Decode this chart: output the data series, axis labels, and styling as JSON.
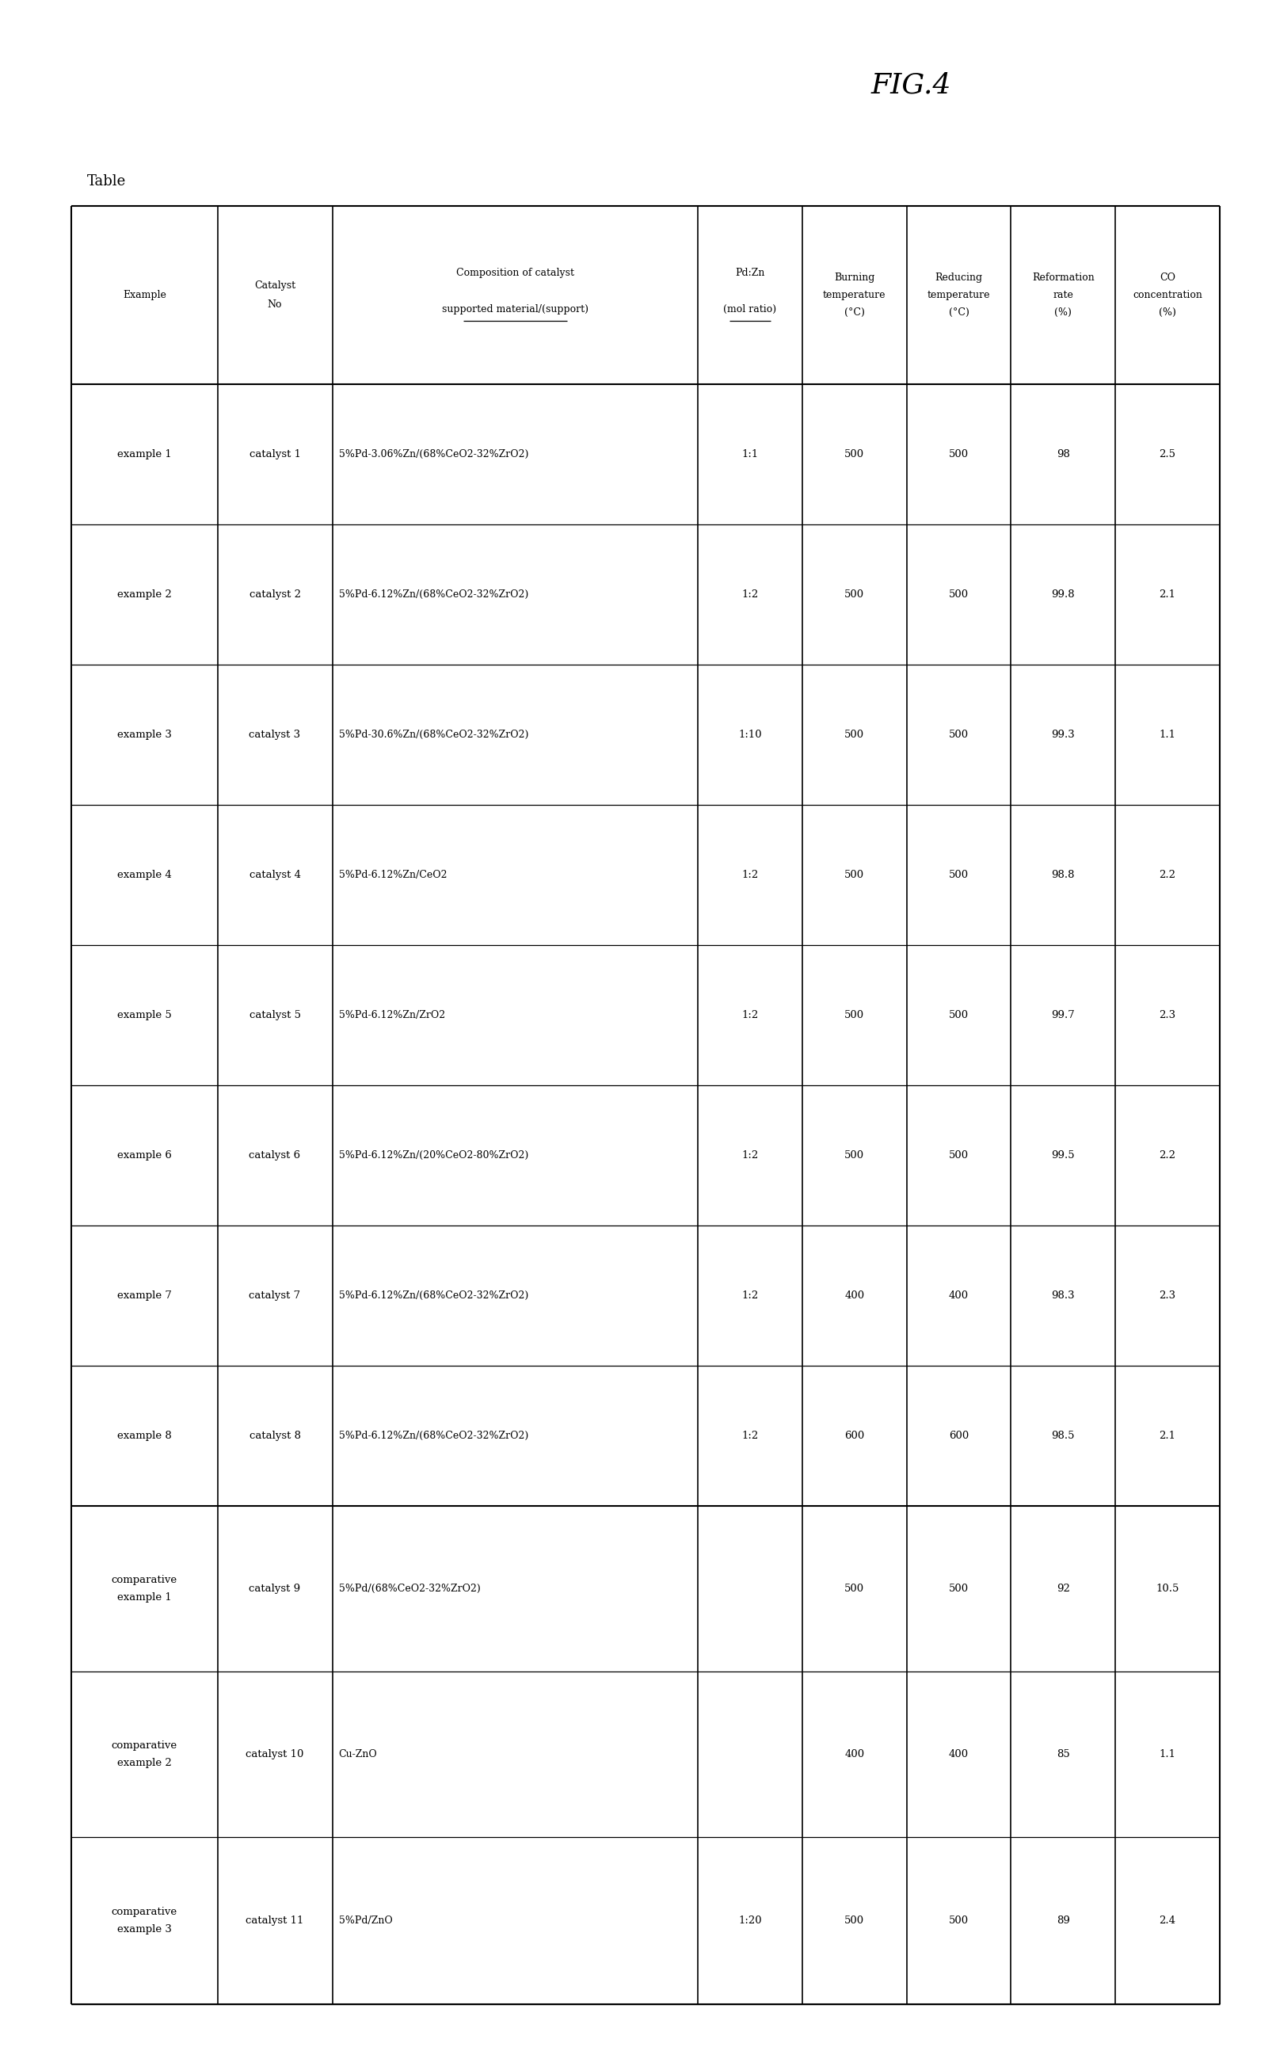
{
  "fig_title": "FIG.4",
  "table_title": "Table",
  "columns": [
    "Example",
    "Catalyst\nNo",
    "Composition of catalyst\nsupported material/(support)",
    "Pd:Zn\n(mol ratio)",
    "Burning\ntemperature\n(°C)",
    "Reducing\ntemperature\n(°C)",
    "Reformation\nrate\n(%)",
    "CO\nconcentration\n(%)"
  ],
  "col_underline": [
    false,
    false,
    true,
    true,
    false,
    false,
    false,
    false
  ],
  "rows": [
    [
      "example 1",
      "catalyst 1",
      "5%Pd-3.06%Zn/(68%CeO2-32%ZrO2)",
      "1:1",
      "500",
      "500",
      "98",
      "2.5"
    ],
    [
      "example 2",
      "catalyst 2",
      "5%Pd-6.12%Zn/(68%CeO2-32%ZrO2)",
      "1:2",
      "500",
      "500",
      "99.8",
      "2.1"
    ],
    [
      "example 3",
      "catalyst 3",
      "5%Pd-30.6%Zn/(68%CeO2-32%ZrO2)",
      "1:10",
      "500",
      "500",
      "99.3",
      "1.1"
    ],
    [
      "example 4",
      "catalyst 4",
      "5%Pd-6.12%Zn/CeO2",
      "1:2",
      "500",
      "500",
      "98.8",
      "2.2"
    ],
    [
      "example 5",
      "catalyst 5",
      "5%Pd-6.12%Zn/ZrO2",
      "1:2",
      "500",
      "500",
      "99.7",
      "2.3"
    ],
    [
      "example 6",
      "catalyst 6",
      "5%Pd-6.12%Zn/(20%CeO2-80%ZrO2)",
      "1:2",
      "500",
      "500",
      "99.5",
      "2.2"
    ],
    [
      "example 7",
      "catalyst 7",
      "5%Pd-6.12%Zn/(68%CeO2-32%ZrO2)",
      "1:2",
      "400",
      "400",
      "98.3",
      "2.3"
    ],
    [
      "example 8",
      "catalyst 8",
      "5%Pd-6.12%Zn/(68%CeO2-32%ZrO2)",
      "1:2",
      "600",
      "600",
      "98.5",
      "2.1"
    ],
    [
      "comparative\nexample 1",
      "catalyst 9",
      "5%Pd/(68%CeO2-32%ZrO2)",
      "",
      "500",
      "500",
      "92",
      "10.5"
    ],
    [
      "comparative\nexample 2",
      "catalyst 10",
      "Cu-ZnO",
      "",
      "400",
      "400",
      "85",
      "1.1"
    ],
    [
      "comparative\nexample 3",
      "catalyst 11",
      "5%Pd/ZnO",
      "1:20",
      "500",
      "500",
      "89",
      "2.4"
    ]
  ],
  "col_widths_rel": [
    1.4,
    1.1,
    3.5,
    1.0,
    1.0,
    1.0,
    1.0,
    1.0
  ],
  "background_color": "#ffffff",
  "text_color": "#000000",
  "line_color": "#000000",
  "font_size": 9.5,
  "header_font_size": 9.0
}
